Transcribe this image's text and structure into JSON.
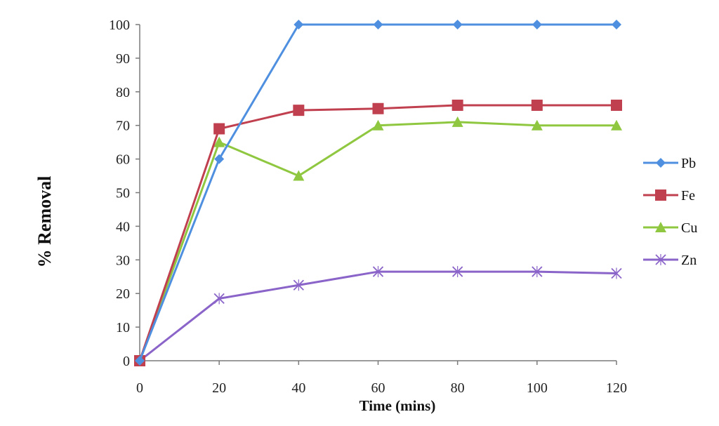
{
  "chart_data": {
    "type": "line",
    "title": "",
    "xlabel": "Time (mins)",
    "ylabel": "% Removal",
    "x": [
      0,
      20,
      40,
      60,
      80,
      100,
      120
    ],
    "xlim": [
      0,
      120
    ],
    "ylim": [
      0,
      100
    ],
    "x_ticks": [
      "0",
      "20",
      "40",
      "60",
      "80",
      "100",
      "120"
    ],
    "y_ticks": [
      "0",
      "10",
      "20",
      "30",
      "40",
      "50",
      "60",
      "70",
      "80",
      "90",
      "100"
    ],
    "grid": false,
    "legend_position": "right",
    "series": [
      {
        "name": "Pb",
        "values": [
          0,
          60,
          100,
          100,
          100,
          100,
          100
        ],
        "color": "#4f8fe0",
        "marker": "diamond"
      },
      {
        "name": "Fe",
        "values": [
          0,
          69,
          74.5,
          75,
          76,
          76,
          76
        ],
        "color": "#c0404f",
        "marker": "square"
      },
      {
        "name": "Cu",
        "values": [
          0,
          65,
          55,
          70,
          71,
          70,
          70
        ],
        "color": "#8fc840",
        "marker": "triangle"
      },
      {
        "name": "Zn",
        "values": [
          0,
          18.5,
          22.5,
          26.5,
          26.5,
          26.5,
          26
        ],
        "color": "#8a64c8",
        "marker": "x"
      }
    ]
  }
}
